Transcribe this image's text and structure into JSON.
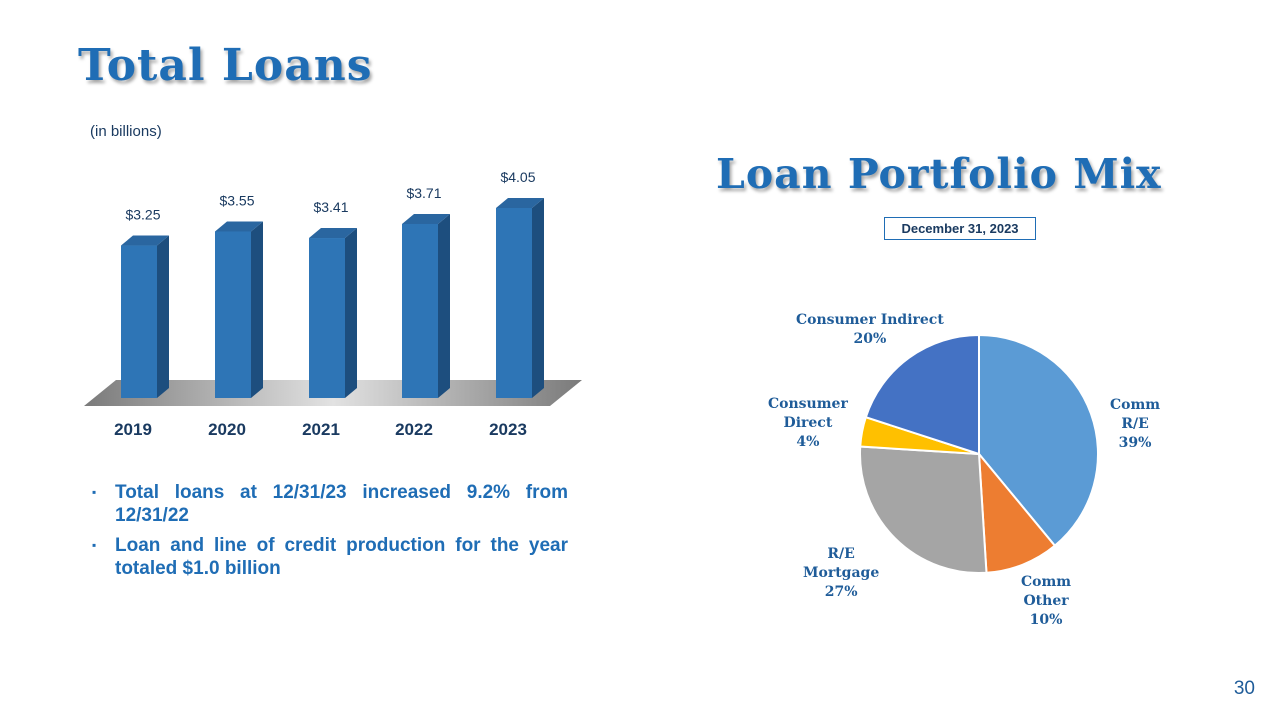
{
  "left_panel": {
    "title": "Total Loans",
    "units_label": "(in billions)",
    "bullets": [
      "Total loans at 12/31/23 increased 9.2% from 12/31/22",
      "Loan and line of credit production for the year totaled $1.0 billion"
    ]
  },
  "right_panel": {
    "title": "Loan Portfolio Mix",
    "date_label": "December 31, 2023",
    "slice_labels": {
      "comm_re": [
        "Comm",
        "R/E",
        "39%"
      ],
      "comm_other": [
        "Comm",
        "Other",
        "10%"
      ],
      "re_mortgage": [
        "R/E",
        "Mortgage",
        "27%"
      ],
      "consumer_direct": [
        "Consumer",
        "Direct",
        "4%"
      ],
      "consumer_indirect": [
        "Consumer Indirect",
        "20%"
      ]
    }
  },
  "page_number": "30",
  "colors": {
    "title": "#1F6DB5",
    "bar_front": "#2E75B6",
    "bar_side": "#1D4E7E",
    "bar_top": "#2A66A0"
  },
  "chart_data": [
    {
      "type": "bar",
      "title": "Total Loans",
      "ylabel": "(in billions)",
      "categories": [
        "2019",
        "2020",
        "2021",
        "2022",
        "2023"
      ],
      "values": [
        3.25,
        3.55,
        3.41,
        3.71,
        4.05
      ],
      "data_labels": [
        "$3.25",
        "$3.55",
        "$3.41",
        "$3.71",
        "$4.05"
      ],
      "ylim": [
        0,
        4.05
      ],
      "grid": false,
      "style": "3d"
    },
    {
      "type": "pie",
      "title": "Loan Portfolio Mix",
      "subtitle": "December 31, 2023",
      "slices": [
        {
          "label": "Comm R/E",
          "value": 39,
          "color": "#5B9BD5"
        },
        {
          "label": "Comm Other",
          "value": 10,
          "color": "#ED7D31"
        },
        {
          "label": "R/E Mortgage",
          "value": 27,
          "color": "#A5A5A5"
        },
        {
          "label": "Consumer Direct",
          "value": 4,
          "color": "#FFC000"
        },
        {
          "label": "Consumer Indirect",
          "value": 20,
          "color": "#4472C4"
        }
      ],
      "start_angle_deg": 0,
      "direction": "clockwise"
    }
  ]
}
